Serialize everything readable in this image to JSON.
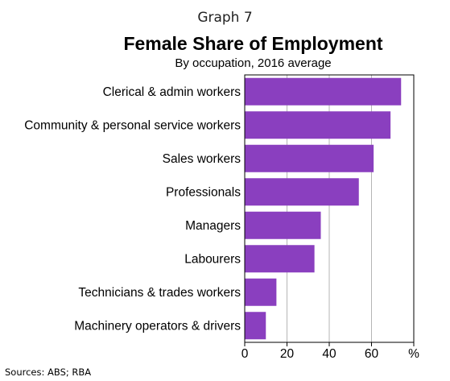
{
  "header": {
    "graph_label": "Graph 7",
    "title": "Female Share of Employment",
    "subtitle": "By occupation, 2016 average"
  },
  "footer": {
    "sources": "Sources:   ABS; RBA"
  },
  "colors": {
    "bar": "#8a3fbf",
    "grid": "#b5b5b5"
  },
  "chart_data": {
    "type": "bar",
    "orientation": "horizontal",
    "title": "Female Share of Employment",
    "subtitle": "By occupation, 2016 average",
    "categories": [
      "Clerical & admin workers",
      "Community & personal service workers",
      "Sales workers",
      "Professionals",
      "Managers",
      "Labourers",
      "Technicians & trades workers",
      "Machinery operators & drivers"
    ],
    "values": [
      74,
      69,
      61,
      54,
      36,
      33,
      15,
      10
    ],
    "xlim": [
      0,
      80
    ],
    "xticks": [
      0,
      20,
      40,
      60
    ],
    "unit_label": "%",
    "grid": true
  }
}
